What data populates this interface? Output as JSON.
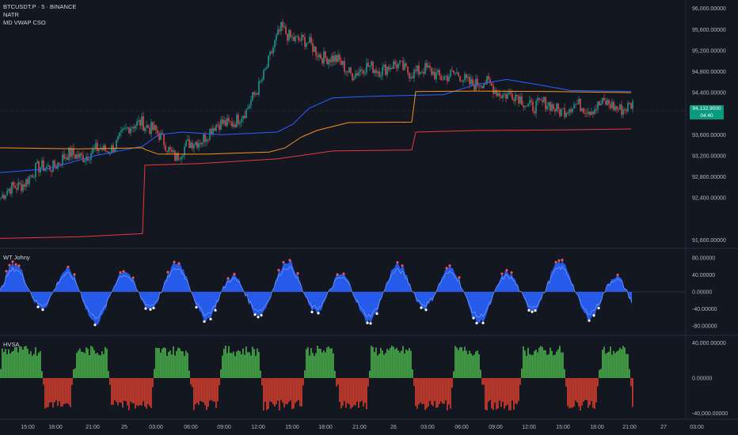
{
  "legend": {
    "symbol": "BTCUSDT.P · 5 · BINANCE",
    "ind1": "NATR",
    "ind2": "MD VWAP CSO",
    "wt": "WT Johny",
    "hvsa": "HVSA"
  },
  "price_tag": {
    "price": "94,132.9000",
    "countdown": "04:40"
  },
  "main_axis": [
    "96,000.00000",
    "95,600.00000",
    "95,200.00000",
    "94,800.00000",
    "94,400.00000",
    "93,600.00000",
    "93,200.00000",
    "92,800.00000",
    "92,400.00000",
    "91,600.00000"
  ],
  "wt_axis": [
    "80.00000",
    "40.00000",
    "0.00000",
    "-40.00000",
    "-80.00000"
  ],
  "hvsa_axis": [
    "40,000.00000",
    "0.00000",
    "-40,000.00000"
  ],
  "time_axis": [
    "15:00",
    "18:00",
    "21:00",
    "25",
    "03:00",
    "06:00",
    "09:00",
    "12:00",
    "15:00",
    "18:00",
    "21:00",
    "26",
    "03:00",
    "06:00",
    "09:00",
    "12:00",
    "15:00",
    "18:00",
    "21:00",
    "27",
    "03:00"
  ],
  "colors": {
    "bg": "#131722",
    "up": "#26a69a",
    "down": "#ef5350",
    "vwap_blue": "#2962ff",
    "vwap_orange": "#f7931a",
    "vwap_red": "#e53935",
    "wt_fill": "#2962ff",
    "hvsa_green": "#43a047",
    "hvsa_red": "#c0392b",
    "tag": "#089981"
  },
  "chart_data": [
    {
      "type": "line",
      "title": "BTCUSDT.P · 5 · BINANCE",
      "series": [
        {
          "name": "",
          "x": [
            "15:00",
            "18:00",
            "21:00",
            "25",
            "03:00",
            "06:00",
            "09:00",
            "12:00",
            "15:00",
            "18:00",
            "21:00",
            "26",
            "03:00",
            "06:00",
            "09:00",
            "12:00",
            "15:00",
            "18:00",
            "21:00"
          ],
          "values": [
            92400,
            92900,
            93200,
            93300,
            93900,
            93200,
            93700,
            94000,
            95600,
            95200,
            94800,
            94900,
            94800,
            94700,
            94500,
            94200,
            94100,
            94150,
            94130
          ]
        }
      ],
      "ylim": [
        91500,
        96100
      ]
    },
    {
      "type": "area",
      "title": "WT Johny",
      "values_desc": "oscillator",
      "ylim": [
        -95,
        95
      ]
    },
    {
      "type": "bar",
      "title": "HVSA",
      "ylim": [
        -40000,
        40000
      ]
    }
  ]
}
